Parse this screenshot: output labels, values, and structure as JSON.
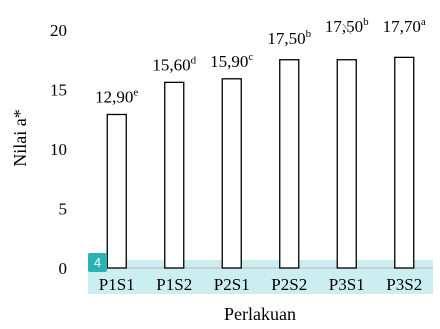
{
  "chart_data": {
    "type": "bar",
    "categories": [
      "P1S1",
      "P1S2",
      "P2S1",
      "P2S2",
      "P3S1",
      "P3S2"
    ],
    "values": [
      12.9,
      15.6,
      15.9,
      17.5,
      17.5,
      17.7
    ],
    "data_labels": [
      {
        "value": "12,90",
        "letter": "e"
      },
      {
        "value": "15,60",
        "letter": "d"
      },
      {
        "value": "15,90",
        "letter": "c"
      },
      {
        "value": "17,50",
        "letter": "b"
      },
      {
        "value": "17,50",
        "letter": "b"
      },
      {
        "value": "17,70",
        "letter": "a"
      }
    ],
    "xlabel": "Perlakuan",
    "ylabel": "Nilai a*",
    "ylim": [
      0,
      20
    ],
    "yticks": [
      "0",
      "5",
      "10",
      "15",
      "20"
    ],
    "grid": false
  },
  "overlay": {
    "badge_number": "4",
    "highlight_color": "#cdeef0",
    "badge_color": "#2bb3b3"
  }
}
